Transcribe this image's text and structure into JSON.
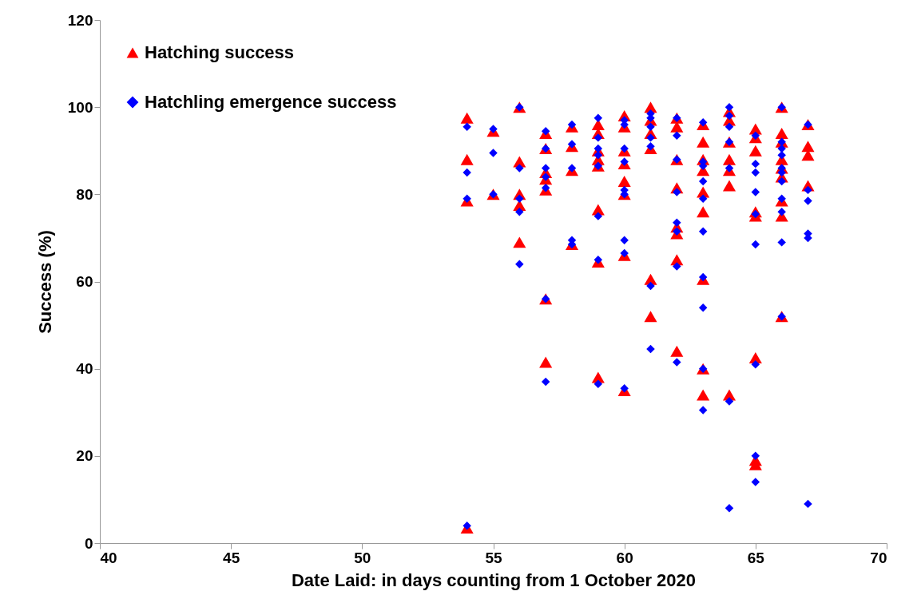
{
  "chart_data": {
    "type": "scatter",
    "xlabel": "Date Laid: in days counting from 1 October 2020",
    "ylabel": "Success (%)",
    "xlim": [
      40,
      70
    ],
    "xticks": [
      40,
      45,
      50,
      55,
      60,
      65,
      70
    ],
    "ylim": [
      0,
      120
    ],
    "yticks": [
      0,
      20,
      40,
      60,
      80,
      100,
      120
    ],
    "grid": false,
    "legend": "top left",
    "series": [
      {
        "name": "Hatching success",
        "color": "#ff0000",
        "marker": "triangle",
        "x": [
          54,
          54,
          54,
          54,
          55,
          55,
          56,
          56,
          56,
          56,
          56,
          57,
          57,
          57,
          57,
          57,
          57,
          57,
          58,
          58,
          58,
          58,
          59,
          59,
          59,
          59,
          59,
          59,
          59,
          59,
          60,
          60,
          60,
          60,
          60,
          60,
          60,
          60,
          61,
          61,
          61,
          61,
          61,
          61,
          62,
          62,
          62,
          62,
          62,
          62,
          62,
          62,
          63,
          63,
          63,
          63,
          63,
          63,
          63,
          63,
          63,
          64,
          64,
          64,
          64,
          64,
          64,
          64,
          65,
          65,
          65,
          65,
          65,
          65,
          65,
          65,
          66,
          66,
          66,
          66,
          66,
          66,
          66,
          66,
          66,
          67,
          67,
          67,
          67
        ],
        "values": [
          97.5,
          88,
          78.5,
          3.5,
          94.5,
          80,
          100,
          87.5,
          80,
          77.5,
          69,
          94,
          90.5,
          85,
          83.5,
          81,
          56,
          41.5,
          95.5,
          91,
          85.5,
          68.5,
          96,
          94,
          90,
          88,
          86.5,
          76.5,
          64.5,
          38,
          98,
          95.5,
          90,
          87,
          83,
          80,
          66,
          35,
          100,
          97,
          94,
          90.5,
          60.5,
          52,
          97.5,
          95.5,
          88,
          81.5,
          72.5,
          71,
          65,
          44,
          96,
          92,
          88,
          85.5,
          80.5,
          76,
          60.5,
          40,
          34,
          99,
          97,
          92,
          88,
          85.5,
          82,
          34,
          95,
          93,
          90,
          76,
          75,
          42.5,
          19,
          18,
          100,
          94,
          92,
          88,
          86,
          84,
          78.5,
          75,
          52,
          96,
          91,
          89,
          82
        ]
      },
      {
        "name": "Hatchling emergence success",
        "color": "#0000ff",
        "marker": "diamond",
        "x": [
          54,
          54,
          54,
          54,
          55,
          55,
          55,
          56,
          56,
          56,
          56,
          56,
          57,
          57,
          57,
          57,
          57,
          57,
          57,
          58,
          58,
          58,
          58,
          58,
          59,
          59,
          59,
          59,
          59,
          59,
          59,
          59,
          60,
          60,
          60,
          60,
          60,
          60,
          60,
          60,
          60,
          61,
          61,
          61,
          61,
          61,
          61,
          61,
          62,
          62,
          62,
          62,
          62,
          62,
          62,
          62,
          63,
          63,
          63,
          63,
          63,
          63,
          63,
          63,
          63,
          63,
          64,
          64,
          64,
          64,
          64,
          64,
          64,
          65,
          65,
          65,
          65,
          65,
          65,
          65,
          65,
          65,
          66,
          66,
          66,
          66,
          66,
          66,
          66,
          66,
          66,
          66,
          66,
          67,
          67,
          67,
          67,
          67,
          67
        ],
        "values": [
          95.5,
          85,
          79,
          4,
          95,
          89.5,
          80,
          100,
          86,
          79,
          76,
          64,
          94.5,
          90.5,
          86,
          84,
          81.5,
          56,
          37,
          96,
          91.5,
          86,
          69.5,
          68.5,
          97.5,
          93,
          90.5,
          89,
          86.5,
          75,
          65,
          36.5,
          97,
          96,
          90.5,
          87.5,
          81,
          80,
          69.5,
          66.5,
          35.5,
          98.5,
          97.5,
          95.5,
          93,
          91,
          59,
          44.5,
          97.5,
          93.5,
          88,
          80.5,
          73.5,
          71.5,
          63.5,
          41.5,
          96.5,
          87.5,
          86.5,
          83,
          79,
          71.5,
          61,
          54,
          40,
          30.5,
          100,
          98,
          95.5,
          92,
          86,
          32.5,
          8,
          93.5,
          87,
          85,
          80.5,
          75.5,
          68.5,
          41,
          20,
          14,
          100,
          92,
          90.5,
          89,
          86,
          85,
          83,
          79,
          76,
          69,
          52,
          96,
          81,
          78.5,
          71,
          70,
          9
        ]
      }
    ]
  }
}
